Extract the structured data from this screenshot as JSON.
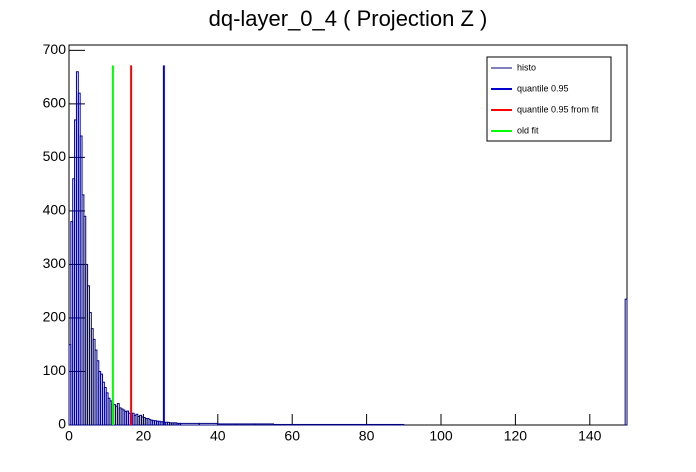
{
  "chart_data": {
    "type": "histogram",
    "title": "dq-layer_0_4 ( Projection Z )",
    "bins": [
      0,
      0.5,
      1,
      1.5,
      2,
      2.5,
      3,
      3.5,
      4,
      4.5,
      5,
      5.5,
      6,
      6.5,
      7,
      7.5,
      8,
      8.5,
      9,
      9.5,
      10,
      10.5,
      11,
      11.5,
      12,
      12.5,
      13,
      13.5,
      14,
      14.5,
      15,
      15.5,
      16,
      16.5,
      17,
      17.5,
      18,
      18.5,
      19,
      19.5,
      20,
      20.5,
      21,
      21.5,
      22,
      22.5,
      23,
      23.5,
      24,
      24.5,
      25,
      25.5,
      26,
      26.5,
      27,
      27.5,
      28,
      28.5,
      29,
      29.5,
      30,
      35,
      40,
      45,
      50,
      55,
      60,
      65,
      70,
      75,
      80,
      85,
      90,
      95,
      100,
      105,
      110,
      115,
      120,
      125,
      130,
      135,
      140,
      145,
      149.5,
      150
    ],
    "series": [
      {
        "name": "histo",
        "color": "#000080",
        "values": [
          150,
          380,
          460,
          570,
          660,
          620,
          540,
          430,
          390,
          300,
          260,
          210,
          180,
          160,
          140,
          120,
          100,
          95,
          80,
          70,
          60,
          50,
          45,
          40,
          38,
          35,
          40,
          32,
          30,
          28,
          25,
          26,
          22,
          20,
          22,
          18,
          20,
          16,
          18,
          15,
          14,
          12,
          12,
          10,
          9,
          8,
          8,
          7,
          7,
          6,
          6,
          5,
          5,
          5,
          4,
          4,
          4,
          4,
          3,
          3,
          3,
          3,
          2,
          2,
          2,
          1,
          1,
          1,
          1,
          1,
          1,
          1,
          0,
          0,
          0,
          0,
          0,
          0,
          0,
          0,
          0,
          0,
          0,
          0,
          235
        ]
      },
      {
        "name": "quantile 0.95",
        "color": "#0000cc",
        "x": 25.5,
        "y": [
          0,
          672
        ]
      },
      {
        "name": "quantile 0.95 from fit",
        "color": "#ff0000",
        "x": 16.7,
        "y": [
          0,
          672
        ]
      },
      {
        "name": "old fit",
        "color": "#00ff00",
        "x": 11.8,
        "y": [
          0,
          672
        ]
      }
    ],
    "xlim": [
      0,
      150
    ],
    "xticks": [
      0,
      20,
      40,
      60,
      80,
      100,
      120,
      140
    ],
    "ylim": [
      0,
      710
    ],
    "yticks": [
      0,
      100,
      200,
      300,
      400,
      500,
      600,
      700
    ],
    "legend": "top-right"
  }
}
